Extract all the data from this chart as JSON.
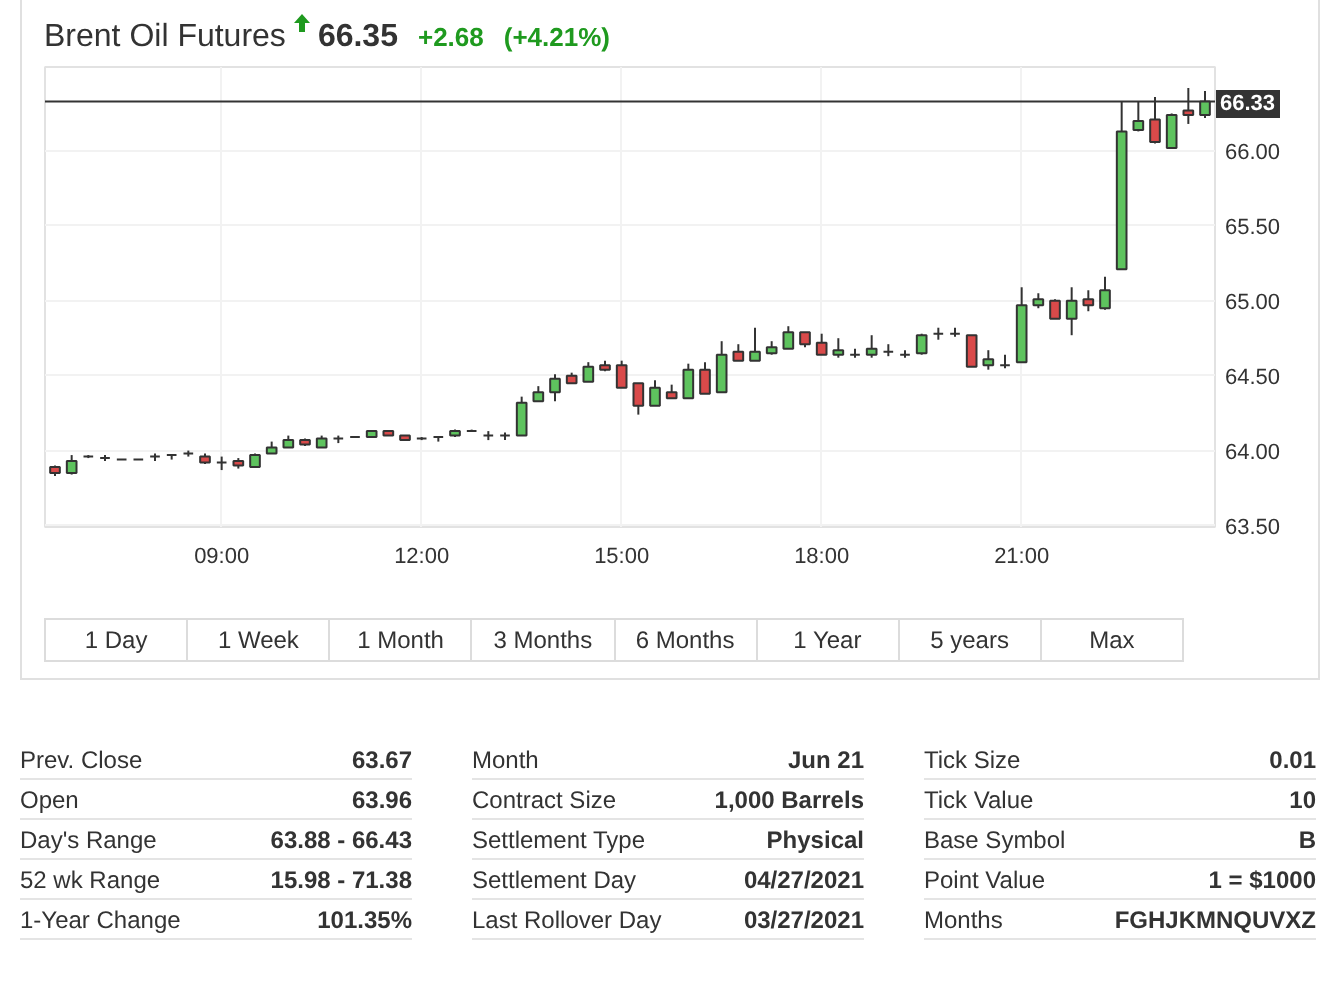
{
  "chart_data": [
    {
      "type": "candlestick",
      "title": "Brent Oil Futures",
      "annotations": [
        "66.35",
        "+2.68",
        "(+4.21%)"
      ],
      "x": [
        6.5,
        6.75,
        7,
        7.25,
        7.5,
        7.75,
        8,
        8.25,
        8.5,
        8.75,
        9,
        9.25,
        9.5,
        9.75,
        10,
        10.25,
        10.5,
        10.75,
        11,
        11.25,
        11.5,
        11.75,
        12,
        12.25,
        12.5,
        12.75,
        13,
        13.25,
        13.5,
        13.75,
        14,
        14.25,
        14.5,
        14.75,
        15,
        15.25,
        15.5,
        15.75,
        16,
        16.25,
        16.5,
        16.75,
        17,
        17.25,
        17.5,
        17.75,
        18,
        18.25,
        18.5,
        18.75,
        19,
        19.25,
        19.5,
        19.75,
        20,
        20.25,
        20.5,
        20.75,
        21,
        21.25,
        21.5,
        21.75,
        22,
        22.25,
        22.5,
        22.75,
        23,
        23.25,
        23.5,
        23.75
      ],
      "ohlc": [
        [
          63.89,
          63.9,
          63.83,
          63.85
        ],
        [
          63.85,
          63.97,
          63.84,
          63.93
        ],
        [
          63.96,
          63.97,
          63.95,
          63.96
        ],
        [
          63.95,
          63.97,
          63.93,
          63.95
        ],
        [
          63.94,
          63.94,
          63.94,
          63.94
        ],
        [
          63.94,
          63.94,
          63.94,
          63.94
        ],
        [
          63.96,
          63.98,
          63.93,
          63.96
        ],
        [
          63.97,
          63.97,
          63.94,
          63.97
        ],
        [
          63.98,
          64.0,
          63.96,
          63.98
        ],
        [
          63.96,
          63.98,
          63.91,
          63.92
        ],
        [
          63.92,
          63.96,
          63.87,
          63.92
        ],
        [
          63.93,
          63.95,
          63.88,
          63.9
        ],
        [
          63.89,
          63.98,
          63.89,
          63.97
        ],
        [
          63.98,
          64.06,
          63.98,
          64.02
        ],
        [
          64.02,
          64.1,
          64.02,
          64.07
        ],
        [
          64.07,
          64.08,
          64.03,
          64.04
        ],
        [
          64.02,
          64.1,
          64.02,
          64.08
        ],
        [
          64.08,
          64.1,
          64.05,
          64.08
        ],
        [
          64.09,
          64.09,
          64.09,
          64.09
        ],
        [
          64.09,
          64.13,
          64.09,
          64.13
        ],
        [
          64.13,
          64.13,
          64.1,
          64.1
        ],
        [
          64.1,
          64.1,
          64.07,
          64.07
        ],
        [
          64.08,
          64.09,
          64.07,
          64.08
        ],
        [
          64.09,
          64.09,
          64.06,
          64.09
        ],
        [
          64.1,
          64.14,
          64.09,
          64.13
        ],
        [
          64.13,
          64.14,
          64.13,
          64.13
        ],
        [
          64.1,
          64.13,
          64.07,
          64.1
        ],
        [
          64.1,
          64.12,
          64.07,
          64.1
        ],
        [
          64.1,
          64.36,
          64.1,
          64.32
        ],
        [
          64.33,
          64.43,
          64.33,
          64.39
        ],
        [
          64.39,
          64.51,
          64.33,
          64.48
        ],
        [
          64.5,
          64.52,
          64.45,
          64.45
        ],
        [
          64.46,
          64.59,
          64.46,
          64.56
        ],
        [
          64.57,
          64.6,
          64.53,
          64.54
        ],
        [
          64.57,
          64.6,
          64.42,
          64.42
        ],
        [
          64.45,
          64.45,
          64.24,
          64.3
        ],
        [
          64.3,
          64.47,
          64.3,
          64.42
        ],
        [
          64.39,
          64.44,
          64.35,
          64.35
        ],
        [
          64.35,
          64.58,
          64.35,
          64.54
        ],
        [
          64.54,
          64.59,
          64.38,
          64.38
        ],
        [
          64.39,
          64.73,
          64.39,
          64.64
        ],
        [
          64.66,
          64.71,
          64.6,
          64.6
        ],
        [
          64.6,
          64.82,
          64.6,
          64.66
        ],
        [
          64.65,
          64.73,
          64.64,
          64.69
        ],
        [
          64.68,
          64.83,
          64.68,
          64.79
        ],
        [
          64.79,
          64.79,
          64.69,
          64.71
        ],
        [
          64.72,
          64.78,
          64.64,
          64.64
        ],
        [
          64.64,
          64.75,
          64.62,
          64.67
        ],
        [
          64.64,
          64.68,
          64.62,
          64.64
        ],
        [
          64.64,
          64.77,
          64.62,
          64.68
        ],
        [
          64.66,
          64.71,
          64.63,
          64.66
        ],
        [
          64.64,
          64.67,
          64.62,
          64.64
        ],
        [
          64.65,
          64.78,
          64.64,
          64.77
        ],
        [
          64.78,
          64.82,
          64.74,
          64.78
        ],
        [
          64.78,
          64.82,
          64.76,
          64.78
        ],
        [
          64.77,
          64.77,
          64.56,
          64.56
        ],
        [
          64.57,
          64.67,
          64.54,
          64.61
        ],
        [
          64.57,
          64.64,
          64.55,
          64.57
        ],
        [
          64.59,
          65.09,
          64.59,
          64.97
        ],
        [
          64.97,
          65.05,
          64.95,
          65.01
        ],
        [
          65.0,
          65.01,
          64.88,
          64.88
        ],
        [
          64.88,
          65.09,
          64.77,
          65.0
        ],
        [
          65.01,
          65.07,
          64.93,
          64.97
        ],
        [
          64.95,
          65.16,
          64.94,
          65.07
        ],
        [
          65.21,
          66.33,
          65.21,
          66.13
        ],
        [
          66.14,
          66.33,
          66.13,
          66.2
        ],
        [
          66.21,
          66.36,
          66.05,
          66.06
        ],
        [
          66.02,
          66.25,
          66.02,
          66.24
        ],
        [
          66.27,
          66.42,
          66.18,
          66.24
        ],
        [
          66.24,
          66.4,
          66.22,
          66.33
        ]
      ],
      "colors": [
        "#d94a4a",
        "#5ec35e",
        "#333333",
        "#333333",
        "#333333",
        "#333333",
        "#333333",
        "#333333",
        "#333333",
        "#d94a4a",
        "#333333",
        "#d94a4a",
        "#5ec35e",
        "#5ec35e",
        "#5ec35e",
        "#d94a4a",
        "#5ec35e",
        "#333333",
        "#333333",
        "#5ec35e",
        "#d94a4a",
        "#d94a4a",
        "#333333",
        "#333333",
        "#5ec35e",
        "#333333",
        "#333333",
        "#333333",
        "#5ec35e",
        "#5ec35e",
        "#5ec35e",
        "#d94a4a",
        "#5ec35e",
        "#d94a4a",
        "#d94a4a",
        "#d94a4a",
        "#5ec35e",
        "#d94a4a",
        "#5ec35e",
        "#d94a4a",
        "#5ec35e",
        "#d94a4a",
        "#5ec35e",
        "#5ec35e",
        "#5ec35e",
        "#d94a4a",
        "#d94a4a",
        "#5ec35e",
        "#333333",
        "#5ec35e",
        "#333333",
        "#333333",
        "#5ec35e",
        "#333333",
        "#333333",
        "#d94a4a",
        "#5ec35e",
        "#333333",
        "#5ec35e",
        "#5ec35e",
        "#d94a4a",
        "#5ec35e",
        "#d94a4a",
        "#5ec35e",
        "#5ec35e",
        "#5ec35e",
        "#d94a4a",
        "#5ec35e",
        "#d94a4a",
        "#5ec35e"
      ],
      "xlim": [
        6.35,
        23.9
      ],
      "ylim": [
        63.49,
        66.56
      ],
      "xticks": [
        {
          "value": 9,
          "label": "09:00"
        },
        {
          "value": 12,
          "label": "12:00"
        },
        {
          "value": 15,
          "label": "15:00"
        },
        {
          "value": 18,
          "label": "18:00"
        },
        {
          "value": 21,
          "label": "21:00"
        }
      ],
      "yticks": [
        {
          "value": 63.5,
          "label": "63.50"
        },
        {
          "value": 64,
          "label": "64.00"
        },
        {
          "value": 64.5,
          "label": "64.50"
        },
        {
          "value": 65,
          "label": "65.00"
        },
        {
          "value": 65.5,
          "label": "65.50"
        },
        {
          "value": 66,
          "label": "66.00"
        }
      ],
      "ref_lines": [
        {
          "axis": "y",
          "value": 66.33,
          "label": "66.33",
          "color": "#333333"
        }
      ],
      "grid": true
    },
    {
      "type": "other",
      "annotations": [
        "1 Day",
        "1 Week",
        "1 Month",
        "3 Months",
        "6 Months",
        "1 Year",
        "5 years",
        "Max"
      ]
    },
    {
      "type": "other",
      "annotations": [
        "Prev. Close",
        "63.67",
        "Month",
        "Jun 21",
        "Tick Size",
        "0.01",
        "Open",
        "63.96",
        "Contract Size",
        "1,000 Barrels",
        "Tick Value",
        "10",
        "Day's Range",
        "63.88 - 66.43",
        "Settlement Type",
        "Physical",
        "Base Symbol",
        "B",
        "52 wk Range",
        "15.98 - 71.38",
        "Settlement Day",
        "04/27/2021",
        "Point Value",
        "1 = $1000",
        "1-Year Change",
        "101.35%",
        "Last Rollover Day",
        "03/27/2021",
        "Months",
        "FGHJKMNQUVXZ"
      ]
    }
  ]
}
